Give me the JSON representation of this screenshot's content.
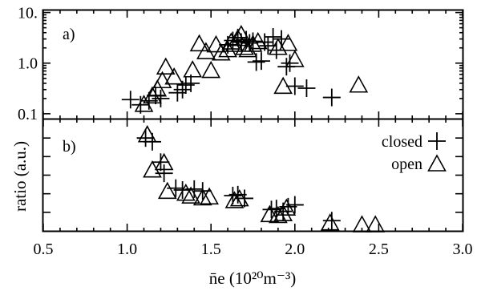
{
  "chart_data": [
    {
      "panel_label": "a)",
      "type": "scatter",
      "yscale": "log",
      "xlim": [
        0.5,
        3.0
      ],
      "ylim": [
        0.08,
        11
      ],
      "ytick_values": [
        0.1,
        1.0,
        10
      ],
      "ytick_labels": [
        "0.1",
        "1.0",
        "10."
      ],
      "ylabel": "",
      "series": [
        {
          "name": "closed",
          "marker": "plus",
          "points": [
            [
              1.02,
              0.19
            ],
            [
              1.08,
              0.15
            ],
            [
              1.13,
              0.18
            ],
            [
              1.17,
              0.23
            ],
            [
              1.2,
              0.2
            ],
            [
              1.3,
              0.26
            ],
            [
              1.33,
              0.3
            ],
            [
              1.35,
              0.37
            ],
            [
              1.38,
              0.4
            ],
            [
              1.6,
              2.3
            ],
            [
              1.63,
              2.8
            ],
            [
              1.66,
              3.2
            ],
            [
              1.68,
              2.6
            ],
            [
              1.71,
              2.9
            ],
            [
              1.73,
              2.5
            ],
            [
              1.75,
              2.7
            ],
            [
              1.77,
              1.05
            ],
            [
              1.8,
              1.1
            ],
            [
              1.82,
              2.6
            ],
            [
              1.84,
              2.2
            ],
            [
              1.87,
              3.3
            ],
            [
              1.89,
              1.8
            ],
            [
              1.92,
              3.0
            ],
            [
              1.95,
              0.85
            ],
            [
              1.97,
              1.0
            ],
            [
              2.0,
              0.35
            ],
            [
              2.07,
              0.32
            ],
            [
              2.22,
              0.21
            ]
          ]
        },
        {
          "name": "open",
          "marker": "triangle",
          "points": [
            [
              1.1,
              0.15
            ],
            [
              1.15,
              0.22
            ],
            [
              1.18,
              0.3
            ],
            [
              1.21,
              0.44
            ],
            [
              1.23,
              0.82
            ],
            [
              1.28,
              0.52
            ],
            [
              1.39,
              0.72
            ],
            [
              1.43,
              2.35
            ],
            [
              1.47,
              1.65
            ],
            [
              1.5,
              0.7
            ],
            [
              1.53,
              2.25
            ],
            [
              1.56,
              1.55
            ],
            [
              1.6,
              1.8
            ],
            [
              1.62,
              2.55
            ],
            [
              1.64,
              2.3
            ],
            [
              1.66,
              3.0
            ],
            [
              1.68,
              3.6
            ],
            [
              1.7,
              2.0
            ],
            [
              1.72,
              1.8
            ],
            [
              1.75,
              2.3
            ],
            [
              1.78,
              2.6
            ],
            [
              1.9,
              2.0
            ],
            [
              1.93,
              0.34
            ],
            [
              1.96,
              2.4
            ],
            [
              2.0,
              1.15
            ],
            [
              2.38,
              0.36
            ]
          ]
        }
      ]
    },
    {
      "panel_label": "b)",
      "type": "scatter",
      "xlim": [
        0.5,
        3.0
      ],
      "ylim": [
        0,
        6
      ],
      "y_ticks_unlabeled": [
        1,
        2,
        3,
        4,
        5
      ],
      "ylabel": "ratio (a.u.)",
      "xlabel": "n̄e (10²⁰m⁻³)",
      "xtick_labels": [
        "0.5",
        "1.0",
        "1.5",
        "2.0",
        "2.5",
        "3.0"
      ],
      "xtick_values": [
        0.5,
        1.0,
        1.5,
        2.0,
        2.5,
        3.0
      ],
      "legend": {
        "placement": "top-right",
        "entries": [
          {
            "label": "closed",
            "marker": "plus"
          },
          {
            "label": "open",
            "marker": "triangle"
          }
        ]
      },
      "series": [
        {
          "name": "closed",
          "marker": "plus",
          "points": [
            [
              1.11,
              5.0
            ],
            [
              1.15,
              4.8
            ],
            [
              1.2,
              3.7
            ],
            [
              1.22,
              3.1
            ],
            [
              1.29,
              2.3
            ],
            [
              1.33,
              2.2
            ],
            [
              1.4,
              2.25
            ],
            [
              1.45,
              2.15
            ],
            [
              1.63,
              1.9
            ],
            [
              1.66,
              1.95
            ],
            [
              1.7,
              1.75
            ],
            [
              1.86,
              1.15
            ],
            [
              1.89,
              1.2
            ],
            [
              1.93,
              1.05
            ],
            [
              1.96,
              1.3
            ],
            [
              2.0,
              1.4
            ],
            [
              2.22,
              0.55
            ]
          ]
        },
        {
          "name": "open",
          "marker": "triangle",
          "points": [
            [
              1.12,
              5.15
            ],
            [
              1.15,
              3.25
            ],
            [
              1.22,
              3.65
            ],
            [
              1.24,
              2.1
            ],
            [
              1.35,
              2.0
            ],
            [
              1.38,
              1.85
            ],
            [
              1.45,
              1.75
            ],
            [
              1.49,
              1.8
            ],
            [
              1.64,
              1.6
            ],
            [
              1.67,
              1.7
            ],
            [
              1.85,
              0.85
            ],
            [
              1.9,
              0.8
            ],
            [
              1.93,
              0.9
            ],
            [
              1.95,
              1.2
            ],
            [
              2.21,
              0.4
            ],
            [
              2.4,
              0.3
            ],
            [
              2.48,
              0.3
            ]
          ]
        }
      ]
    }
  ]
}
